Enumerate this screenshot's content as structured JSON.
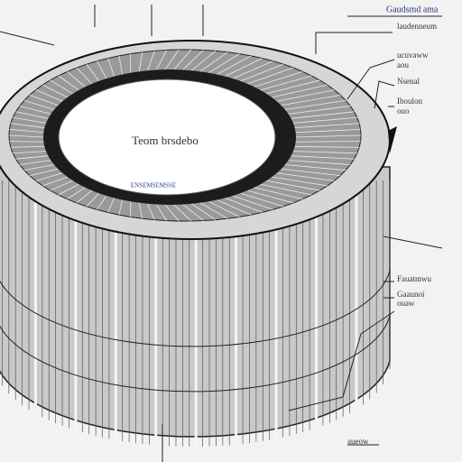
{
  "header": {
    "title": "Gaudsmd ama"
  },
  "center": {
    "label": "Teom brsdebo",
    "caption": "ENSEMSEMSSE"
  },
  "callouts": [
    "laudenneum",
    "ucuvaww",
    "aou",
    "Nsenal",
    "Iboulon",
    "ouo",
    "Fauatmwu",
    "Gaaunoi",
    "ouaw",
    "aueow"
  ]
}
